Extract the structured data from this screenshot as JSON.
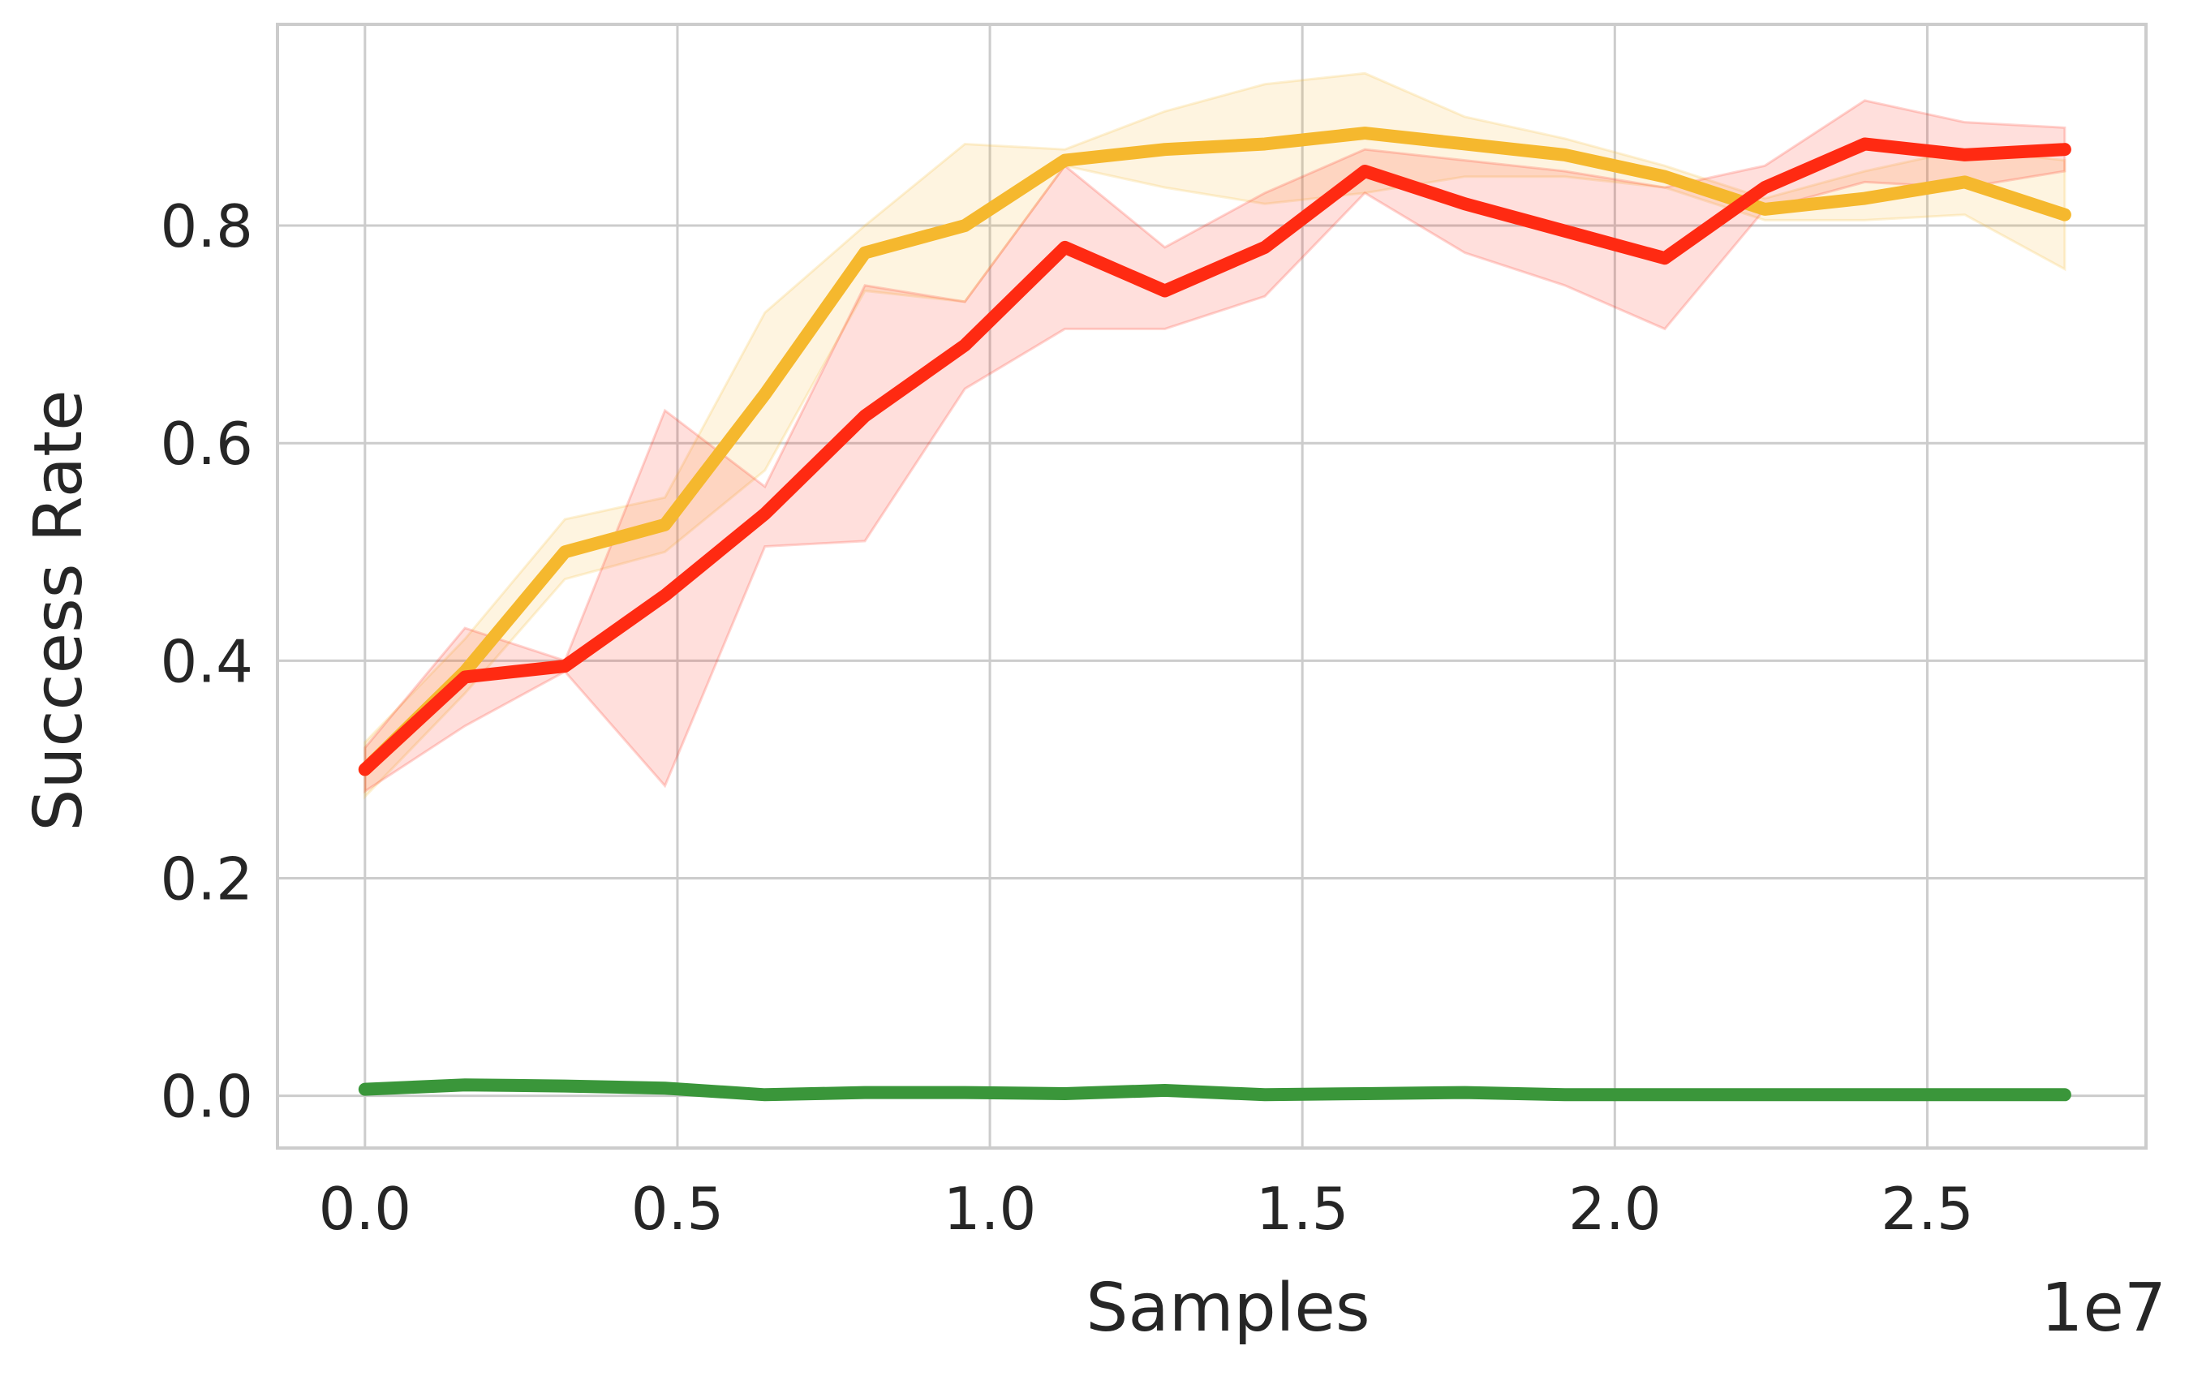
{
  "chart_data": {
    "type": "line",
    "title": "",
    "xlabel": "Samples",
    "ylabel": "Success Rate",
    "x_offset_text": "1e7",
    "xlim": [
      -0.14,
      2.85
    ],
    "ylim": [
      -0.048,
      0.985
    ],
    "xticks": [
      0.0,
      0.5,
      1.0,
      1.5,
      2.0,
      2.5
    ],
    "xtick_labels": [
      "0.0",
      "0.5",
      "1.0",
      "1.5",
      "2.0",
      "2.5"
    ],
    "yticks": [
      0.0,
      0.2,
      0.4,
      0.6,
      0.8
    ],
    "ytick_labels": [
      "0.0",
      "0.2",
      "0.4",
      "0.6",
      "0.8"
    ],
    "grid": true,
    "legend": "none",
    "x": [
      0.0,
      0.16,
      0.32,
      0.48,
      0.64,
      0.8,
      0.96,
      1.12,
      1.28,
      1.44,
      1.6,
      1.76,
      1.92,
      2.08,
      2.24,
      2.4,
      2.56,
      2.72
    ],
    "series": [
      {
        "color": "#f5b82e",
        "values": [
          0.3,
          0.39,
          0.5,
          0.525,
          0.645,
          0.775,
          0.8,
          0.86,
          0.87,
          0.875,
          0.885,
          0.875,
          0.865,
          0.845,
          0.815,
          0.825,
          0.84,
          0.81
        ],
        "upper": [
          0.325,
          0.42,
          0.53,
          0.55,
          0.72,
          0.8,
          0.875,
          0.87,
          0.905,
          0.93,
          0.94,
          0.9,
          0.88,
          0.855,
          0.825,
          0.85,
          0.87,
          0.86
        ],
        "lower": [
          0.275,
          0.37,
          0.475,
          0.5,
          0.575,
          0.74,
          0.73,
          0.855,
          0.835,
          0.82,
          0.83,
          0.845,
          0.845,
          0.835,
          0.805,
          0.805,
          0.81,
          0.76
        ]
      },
      {
        "color": "#ff2a12",
        "values": [
          0.3,
          0.385,
          0.395,
          0.46,
          0.535,
          0.625,
          0.69,
          0.78,
          0.74,
          0.78,
          0.85,
          0.82,
          0.795,
          0.77,
          0.835,
          0.875,
          0.865,
          0.87
        ],
        "upper": [
          0.32,
          0.43,
          0.4,
          0.63,
          0.56,
          0.745,
          0.73,
          0.855,
          0.78,
          0.83,
          0.87,
          0.86,
          0.85,
          0.835,
          0.855,
          0.915,
          0.895,
          0.89
        ],
        "lower": [
          0.28,
          0.34,
          0.39,
          0.285,
          0.505,
          0.51,
          0.65,
          0.705,
          0.705,
          0.735,
          0.83,
          0.775,
          0.745,
          0.705,
          0.815,
          0.84,
          0.835,
          0.85
        ]
      },
      {
        "color": "#3a963a",
        "values": [
          0.006,
          0.01,
          0.009,
          0.007,
          0.001,
          0.003,
          0.003,
          0.002,
          0.005,
          0.001,
          0.002,
          0.003,
          0.001,
          0.001,
          0.001,
          0.001,
          0.001,
          0.001
        ],
        "upper": [
          0.006,
          0.01,
          0.009,
          0.007,
          0.001,
          0.003,
          0.003,
          0.002,
          0.005,
          0.001,
          0.002,
          0.003,
          0.001,
          0.001,
          0.001,
          0.001,
          0.001,
          0.001
        ],
        "lower": [
          0.006,
          0.01,
          0.009,
          0.007,
          0.001,
          0.003,
          0.003,
          0.002,
          0.005,
          0.001,
          0.002,
          0.003,
          0.001,
          0.001,
          0.001,
          0.001,
          0.001,
          0.001
        ]
      }
    ]
  }
}
